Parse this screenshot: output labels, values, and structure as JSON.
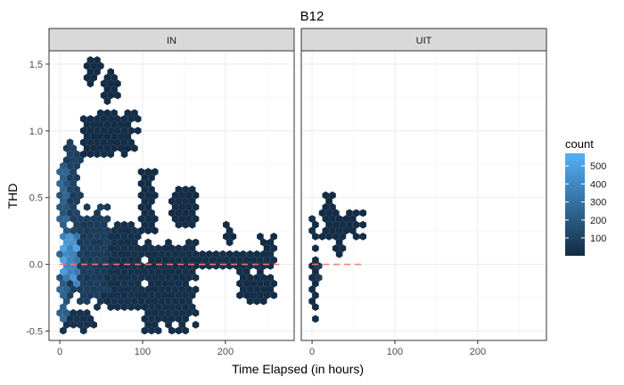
{
  "chart_data": {
    "type": "hexbin",
    "title": "B12",
    "xlabel": "Time Elapsed (in hours)",
    "ylabel": "THD",
    "xlim": [
      -13,
      283
    ],
    "ylim": [
      -0.57,
      1.6
    ],
    "x_ticks": [
      0,
      100,
      200
    ],
    "y_ticks": [
      -0.5,
      0.0,
      0.5,
      1.0,
      1.5
    ],
    "y_tick_labels": [
      "-0.5",
      "0.0",
      "0.5",
      "1.0",
      "1.5"
    ],
    "grid": true,
    "legend": {
      "title": "count",
      "placement": "right",
      "min": 1,
      "max": 570,
      "ticks": [
        100,
        200,
        300,
        400,
        500
      ],
      "color_low": "#132B43",
      "color_high": "#56B1F7"
    },
    "reference_line": {
      "y": 0.0,
      "color": "#F8766D",
      "style": "dashed"
    },
    "panels": [
      {
        "name": "IN",
        "x_max_data": 265,
        "ref_line_x": [
          0,
          265
        ],
        "regions": [
          {
            "x": [
              0,
              10
            ],
            "y": [
              -0.45,
              0.75
            ],
            "count": 220
          },
          {
            "x": [
              2,
              22
            ],
            "y": [
              -0.15,
              0.25
            ],
            "count": 420
          },
          {
            "x": [
              5,
              25
            ],
            "y": [
              0.25,
              0.95
            ],
            "count": 90
          },
          {
            "x": [
              10,
              60
            ],
            "y": [
              -0.3,
              0.45
            ],
            "count": 70
          },
          {
            "x": [
              0,
              45
            ],
            "y": [
              -0.5,
              -0.35
            ],
            "count": 30
          },
          {
            "x": [
              30,
              50
            ],
            "y": [
              1.35,
              1.55
            ],
            "count": 5
          },
          {
            "x": [
              50,
              70
            ],
            "y": [
              1.2,
              1.45
            ],
            "count": 6
          },
          {
            "x": [
              25,
              95
            ],
            "y": [
              0.8,
              1.15
            ],
            "count": 12
          },
          {
            "x": [
              45,
              100
            ],
            "y": [
              -0.35,
              0.3
            ],
            "count": 25
          },
          {
            "x": [
              95,
              115
            ],
            "y": [
              0.25,
              0.7
            ],
            "count": 12
          },
          {
            "x": [
              100,
              165
            ],
            "y": [
              -0.5,
              0.2
            ],
            "count": 18
          },
          {
            "x": [
              135,
              165
            ],
            "y": [
              0.25,
              0.6
            ],
            "count": 8
          },
          {
            "x": [
              155,
              260
            ],
            "y": [
              -0.05,
              0.1
            ],
            "count": 20
          },
          {
            "x": [
              200,
              210
            ],
            "y": [
              0.15,
              0.3
            ],
            "count": 6
          },
          {
            "x": [
              210,
              260
            ],
            "y": [
              -0.3,
              -0.05
            ],
            "count": 10
          },
          {
            "x": [
              240,
              262
            ],
            "y": [
              0.1,
              0.22
            ],
            "count": 5
          }
        ]
      },
      {
        "name": "UIT",
        "x_max_data": 62,
        "ref_line_x": [
          0,
          62
        ],
        "regions": [
          {
            "x": [
              0,
              8
            ],
            "y": [
              -0.45,
              0.45
            ],
            "count": 15
          },
          {
            "x": [
              5,
              12
            ],
            "y": [
              -0.2,
              0.1
            ],
            "count": 60
          },
          {
            "x": [
              10,
              62
            ],
            "y": [
              0.2,
              0.4
            ],
            "count": 10
          },
          {
            "x": [
              15,
              30
            ],
            "y": [
              0.4,
              0.55
            ],
            "count": 6
          },
          {
            "x": [
              25,
              40
            ],
            "y": [
              0.05,
              0.2
            ],
            "count": 5
          }
        ]
      }
    ]
  }
}
